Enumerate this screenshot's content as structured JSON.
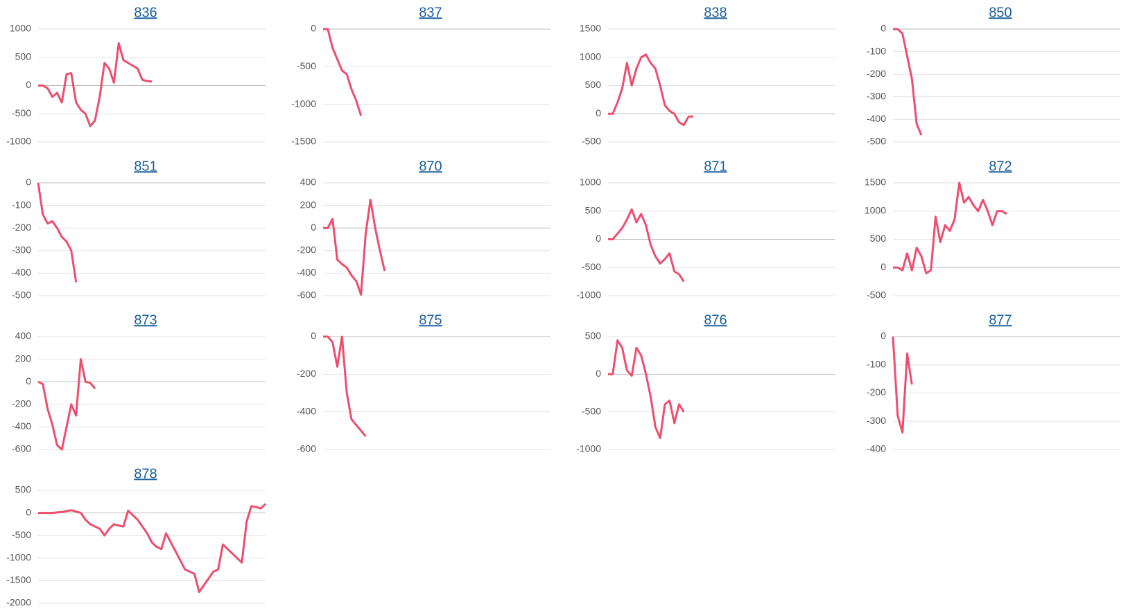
{
  "chart_data": [
    {
      "type": "line",
      "title": "836",
      "color": "#ee4d6e",
      "grid": true,
      "ylim": [
        -1000,
        1000
      ],
      "yticks": [
        -1000,
        -500,
        0,
        500,
        1000
      ],
      "values": [
        0,
        0,
        -50,
        -200,
        -130,
        -300,
        200,
        220,
        -300,
        -430,
        -500,
        -720,
        -620,
        -200,
        400,
        300,
        50,
        750,
        450,
        400,
        350,
        300,
        100,
        80,
        70
      ]
    },
    {
      "type": "line",
      "title": "837",
      "color": "#ee4d6e",
      "grid": true,
      "ylim": [
        -1500,
        0
      ],
      "yticks": [
        -1500,
        -1000,
        -500,
        0
      ],
      "values": [
        0,
        0,
        -250,
        -400,
        -550,
        -600,
        -800,
        -950,
        -1150
      ]
    },
    {
      "type": "line",
      "title": "838",
      "color": "#ee4d6e",
      "grid": true,
      "ylim": [
        -500,
        1500
      ],
      "yticks": [
        -500,
        0,
        500,
        1000,
        1500
      ],
      "values": [
        0,
        0,
        200,
        450,
        900,
        500,
        800,
        1000,
        1050,
        900,
        800,
        500,
        150,
        50,
        0,
        -150,
        -200,
        -50,
        -50
      ]
    },
    {
      "type": "line",
      "title": "850",
      "color": "#ee4d6e",
      "grid": true,
      "ylim": [
        -500,
        0
      ],
      "yticks": [
        -500,
        -400,
        -300,
        -200,
        -100,
        0
      ],
      "values": [
        0,
        0,
        -20,
        -120,
        -220,
        -420,
        -470
      ]
    },
    {
      "type": "line",
      "title": "851",
      "color": "#ee4d6e",
      "grid": true,
      "ylim": [
        -500,
        0
      ],
      "yticks": [
        -500,
        -400,
        -300,
        -200,
        -100,
        0
      ],
      "values": [
        0,
        -140,
        -180,
        -170,
        -200,
        -240,
        -260,
        -300,
        -440
      ]
    },
    {
      "type": "line",
      "title": "870",
      "color": "#ee4d6e",
      "grid": true,
      "ylim": [
        -600,
        400
      ],
      "yticks": [
        -600,
        -400,
        -200,
        0,
        200,
        400
      ],
      "values": [
        0,
        0,
        80,
        -280,
        -320,
        -350,
        -420,
        -470,
        -590,
        -50,
        250,
        0,
        -200,
        -380
      ]
    },
    {
      "type": "line",
      "title": "871",
      "color": "#ee4d6e",
      "grid": true,
      "ylim": [
        -1000,
        1000
      ],
      "yticks": [
        -1000,
        -500,
        0,
        500,
        1000
      ],
      "values": [
        0,
        0,
        100,
        200,
        350,
        530,
        300,
        450,
        250,
        -100,
        -300,
        -430,
        -350,
        -250,
        -570,
        -620,
        -750
      ]
    },
    {
      "type": "line",
      "title": "872",
      "color": "#ee4d6e",
      "grid": true,
      "ylim": [
        -500,
        1500
      ],
      "yticks": [
        -500,
        0,
        500,
        1000,
        1500
      ],
      "values": [
        0,
        0,
        -50,
        250,
        -50,
        350,
        200,
        -100,
        -50,
        900,
        450,
        750,
        650,
        850,
        1500,
        1150,
        1250,
        1100,
        1000,
        1200,
        1000,
        750,
        1000,
        1000,
        950
      ]
    },
    {
      "type": "line",
      "title": "873",
      "color": "#ee4d6e",
      "grid": true,
      "ylim": [
        -600,
        400
      ],
      "yticks": [
        -600,
        -400,
        -200,
        0,
        200,
        400
      ],
      "values": [
        0,
        -20,
        -240,
        -380,
        -560,
        -600,
        -400,
        -200,
        -300,
        200,
        0,
        -10,
        -60
      ]
    },
    {
      "type": "line",
      "title": "875",
      "color": "#ee4d6e",
      "grid": true,
      "ylim": [
        -600,
        0
      ],
      "yticks": [
        -600,
        -400,
        -200,
        0
      ],
      "values": [
        0,
        0,
        -30,
        -160,
        0,
        -300,
        -440,
        -470,
        -500,
        -530
      ]
    },
    {
      "type": "line",
      "title": "876",
      "color": "#ee4d6e",
      "grid": true,
      "ylim": [
        -1000,
        500
      ],
      "yticks": [
        -1000,
        -500,
        0,
        500
      ],
      "values": [
        0,
        0,
        450,
        350,
        50,
        -20,
        350,
        250,
        0,
        -300,
        -700,
        -850,
        -400,
        -350,
        -650,
        -400,
        -500
      ]
    },
    {
      "type": "line",
      "title": "877",
      "color": "#ee4d6e",
      "grid": true,
      "ylim": [
        -400,
        0
      ],
      "yticks": [
        -400,
        -300,
        -200,
        -100,
        0
      ],
      "values": [
        0,
        -280,
        -340,
        -60,
        -170
      ]
    },
    {
      "type": "line",
      "title": "878",
      "color": "#ee4d6e",
      "grid": true,
      "ylim": [
        -2000,
        500
      ],
      "yticks": [
        -2000,
        -1500,
        -1000,
        -500,
        0,
        500
      ],
      "values": [
        0,
        0,
        0,
        0,
        10,
        20,
        40,
        60,
        30,
        0,
        -150,
        -250,
        -300,
        -350,
        -500,
        -350,
        -250,
        -280,
        -300,
        50,
        -50,
        -150,
        -300,
        -450,
        -650,
        -750,
        -800,
        -450,
        -650,
        -850,
        -1050,
        -1250,
        -1300,
        -1350,
        -1750,
        -1600,
        -1450,
        -1300,
        -1250,
        -700,
        -800,
        -900,
        -1000,
        -1100,
        -200,
        150,
        130,
        100,
        200
      ]
    }
  ]
}
